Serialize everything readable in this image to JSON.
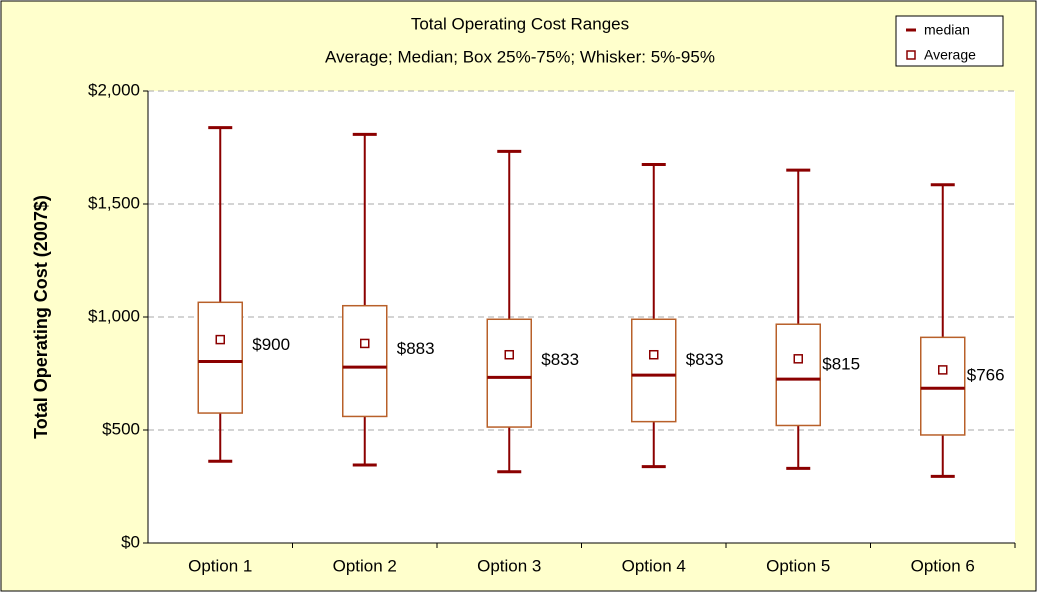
{
  "chart_data": {
    "type": "box",
    "title": "Total Operating Cost Ranges",
    "subtitle": "Average; Median; Box 25%-75%; Whisker: 5%-95%",
    "y_label": "Total Operating Cost (2007$)",
    "categories": [
      "Option 1",
      "Option 2",
      "Option 3",
      "Option 4",
      "Option 5",
      "Option 6"
    ],
    "whisker_low": [
      362,
      345,
      315,
      338,
      330,
      295
    ],
    "q1": [
      575,
      560,
      513,
      537,
      520,
      478
    ],
    "median": [
      803,
      778,
      733,
      743,
      725,
      685
    ],
    "q3": [
      1065,
      1050,
      990,
      990,
      968,
      910
    ],
    "whisker_high": [
      1838,
      1808,
      1733,
      1675,
      1650,
      1585
    ],
    "average": [
      900,
      883,
      833,
      833,
      815,
      766
    ],
    "value_labels": [
      "$900",
      "$883",
      "$833",
      "$833",
      "$815",
      "$766"
    ],
    "legend": [
      "median",
      "Average"
    ],
    "ylim": [
      0,
      2000
    ],
    "yticks": [
      {
        "value": 0,
        "label": "$0"
      },
      {
        "value": 500,
        "label": "$500"
      },
      {
        "value": 1000,
        "label": "$1,000"
      },
      {
        "value": 1500,
        "label": "$1,500"
      },
      {
        "value": 2000,
        "label": "$2,000"
      }
    ],
    "grid": true,
    "whisker_color": "#8b0000",
    "box_color": "#b8602a"
  }
}
